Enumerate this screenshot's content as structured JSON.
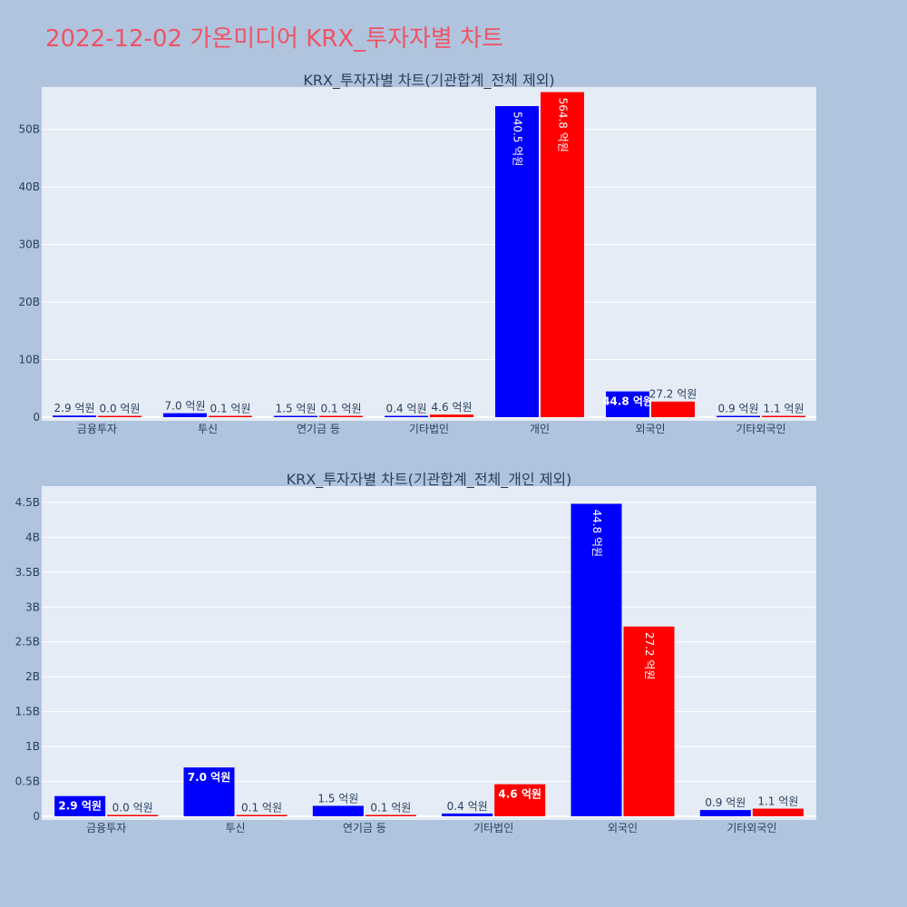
{
  "title": "2022-12-02 가온미디어 KRX_투자자별 차트",
  "colors": {
    "background": "#b0c4de",
    "plot_background": "#e5ecf6",
    "title": "#ef5366",
    "series_a": "#0000ff",
    "series_b": "#ff0000"
  },
  "chart_data": [
    {
      "type": "bar",
      "title": "KRX_투자자별 차트(기관합계_전체 제외)",
      "categories": [
        "금융투자",
        "투신",
        "연기금 등",
        "기타법인",
        "개인",
        "외국인",
        "기타외국인"
      ],
      "series": [
        {
          "values": [
            0.29,
            0.7,
            0.15,
            0.04,
            54.05,
            4.48,
            0.09
          ],
          "labels": [
            "2.9 억원",
            "7.0 억원",
            "1.5 억원",
            "0.4 억원",
            "540.5 억원",
            "44.8 억원",
            "0.9 억원"
          ]
        },
        {
          "values": [
            0.003,
            0.01,
            0.01,
            0.46,
            56.48,
            2.72,
            0.11
          ],
          "labels": [
            "0.0 억원",
            "0.1 억원",
            "0.1 억원",
            "4.6 억원",
            "564.8 억원",
            "27.2 억원",
            "1.1 억원"
          ]
        }
      ],
      "yticks": [
        0,
        10,
        20,
        30,
        40,
        50
      ],
      "ytick_labels": [
        "0",
        "10B",
        "20B",
        "30B",
        "40B",
        "50B"
      ],
      "ylim": [
        0,
        57.2
      ],
      "grid": true
    },
    {
      "type": "bar",
      "title": "KRX_투자자별 차트(기관합계_전체_개인 제외)",
      "categories": [
        "금융투자",
        "투신",
        "연기금 등",
        "기타법인",
        "외국인",
        "기타외국인"
      ],
      "series": [
        {
          "values": [
            0.29,
            0.7,
            0.15,
            0.04,
            4.48,
            0.09
          ],
          "labels": [
            "2.9 억원",
            "7.0 억원",
            "1.5 억원",
            "0.4 억원",
            "44.8 억원",
            "0.9 억원"
          ]
        },
        {
          "values": [
            0.003,
            0.01,
            0.01,
            0.46,
            2.72,
            0.11
          ],
          "labels": [
            "0.0 억원",
            "0.1 억원",
            "0.1 억원",
            "4.6 억원",
            "27.2 억원",
            "1.1 억원"
          ]
        }
      ],
      "yticks": [
        0,
        0.5,
        1,
        1.5,
        2,
        2.5,
        3,
        3.5,
        4,
        4.5
      ],
      "ytick_labels": [
        "0",
        "0.5B",
        "1B",
        "1.5B",
        "2B",
        "2.5B",
        "3B",
        "3.5B",
        "4B",
        "4.5B"
      ],
      "ylim": [
        0,
        4.72
      ],
      "grid": true
    }
  ]
}
